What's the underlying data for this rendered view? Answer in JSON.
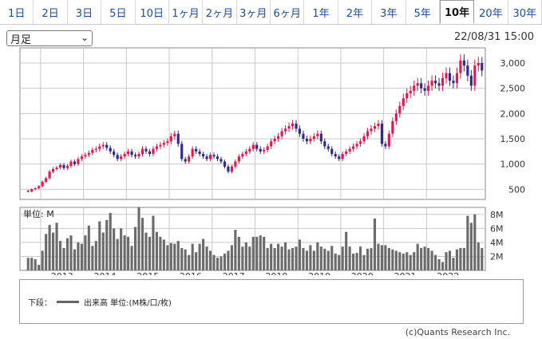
{
  "tabs": [
    {
      "label": "1日"
    },
    {
      "label": "2日"
    },
    {
      "label": "3日"
    },
    {
      "label": "5日"
    },
    {
      "label": "10日"
    },
    {
      "label": "1ヶ月"
    },
    {
      "label": "2ヶ月"
    },
    {
      "label": "3ヶ月"
    },
    {
      "label": "6ヶ月"
    },
    {
      "label": "1年"
    },
    {
      "label": "2年"
    },
    {
      "label": "3年"
    },
    {
      "label": "5年"
    },
    {
      "label": "10年"
    },
    {
      "label": "20年"
    },
    {
      "label": "30年"
    }
  ],
  "active_tab": 13,
  "period_select": {
    "value": "月足"
  },
  "timestamp": "22/08/31 15:00",
  "legend": {
    "prefix": "下段：",
    "label": "出来高 単位:(M株/口/枚)"
  },
  "copyright": "(c)Quants Research Inc.",
  "colors": {
    "up": "#e8144c",
    "down": "#2d2a8c",
    "volume": "#6b6b6b",
    "grid": "#c8c8c8"
  },
  "chart_data": [
    {
      "type": "candlestick",
      "ylim": [
        300,
        3300
      ],
      "yticks": [
        500,
        1000,
        1500,
        2000,
        2500,
        3000
      ],
      "yticklabels": [
        "500",
        "1,000",
        "1,500",
        "2,000",
        "2,500",
        "3,000"
      ],
      "xtick_labels": [
        "2013",
        "2014",
        "2015",
        "2016",
        "2017",
        "2018",
        "2019",
        "2020",
        "2021",
        "2022"
      ],
      "x_start": "2012-09",
      "series": [
        {
          "close": [
            455,
            500,
            520,
            560,
            650,
            720,
            850,
            900,
            930,
            980,
            920,
            960,
            1050,
            1000,
            1100,
            1150,
            1180,
            1220,
            1280,
            1300,
            1350,
            1380,
            1320,
            1250,
            1180,
            1100,
            1150,
            1200,
            1250,
            1180,
            1150,
            1200,
            1300,
            1250,
            1200,
            1300,
            1350,
            1380,
            1420,
            1450,
            1550,
            1600,
            1400,
            1100,
            1050,
            1150,
            1300,
            1250,
            1200,
            1150,
            1100,
            1180,
            1150,
            1100,
            1050,
            950,
            850,
            950,
            1050,
            1150,
            1200,
            1250,
            1300,
            1380,
            1300,
            1250,
            1280,
            1350,
            1450,
            1500,
            1550,
            1650,
            1700,
            1750,
            1800,
            1700,
            1600,
            1500,
            1450,
            1500,
            1550,
            1600,
            1450,
            1350,
            1300,
            1200,
            1150,
            1100,
            1200,
            1250,
            1300,
            1350,
            1400,
            1450,
            1550,
            1650,
            1700,
            1750,
            1800,
            1400,
            1350,
            1600,
            1850,
            2000,
            2150,
            2300,
            2400,
            2450,
            2550,
            2600,
            2500,
            2450,
            2550,
            2650,
            2600,
            2550,
            2700,
            2800,
            2650,
            2600,
            2800,
            3050,
            2950,
            2750,
            2550,
            2950,
            3000,
            2850
          ],
          "open": [
            470,
            455,
            500,
            520,
            560,
            650,
            720,
            850,
            900,
            930,
            980,
            920,
            960,
            1050,
            1000,
            1100,
            1150,
            1180,
            1220,
            1280,
            1300,
            1350,
            1380,
            1320,
            1250,
            1180,
            1100,
            1150,
            1200,
            1250,
            1180,
            1150,
            1200,
            1300,
            1250,
            1200,
            1300,
            1350,
            1380,
            1420,
            1450,
            1550,
            1600,
            1400,
            1100,
            1050,
            1150,
            1300,
            1250,
            1200,
            1150,
            1100,
            1180,
            1150,
            1100,
            1050,
            950,
            850,
            950,
            1050,
            1150,
            1200,
            1250,
            1300,
            1380,
            1300,
            1250,
            1280,
            1350,
            1450,
            1500,
            1550,
            1650,
            1700,
            1750,
            1800,
            1700,
            1600,
            1500,
            1450,
            1500,
            1550,
            1600,
            1450,
            1350,
            1300,
            1200,
            1150,
            1100,
            1200,
            1250,
            1300,
            1350,
            1400,
            1450,
            1550,
            1650,
            1700,
            1750,
            1800,
            1400,
            1350,
            1600,
            1850,
            2000,
            2150,
            2300,
            2400,
            2450,
            2550,
            2600,
            2500,
            2450,
            2550,
            2650,
            2600,
            2550,
            2700,
            2800,
            2650,
            2600,
            2800,
            3050,
            2950,
            2750,
            2550,
            2950,
            3000
          ],
          "volume": [
            1.8,
            1.8,
            1.6,
            0.8,
            2.8,
            5.2,
            6.5,
            5.4,
            6.8,
            4.2,
            3.2,
            4.6,
            5.0,
            3.0,
            4.0,
            3.8,
            5.0,
            6.4,
            3.5,
            4.2,
            7.0,
            5.4,
            7.2,
            8.2,
            6.0,
            4.5,
            6.0,
            5.0,
            4.8,
            3.5,
            6.2,
            9.0,
            7.5,
            5.4,
            4.8,
            7.8,
            5.5,
            4.8,
            4.4,
            3.6,
            3.9,
            3.8,
            4.2,
            3.2,
            3.0,
            2.2,
            3.8,
            2.6,
            3.8,
            4.5,
            3.4,
            2.8,
            2.2,
            1.8,
            2.0,
            2.4,
            2.8,
            3.6,
            5.8,
            4.8,
            3.4,
            4.0,
            3.4,
            4.8,
            4.8,
            5.0,
            4.8,
            3.2,
            3.8,
            3.2,
            3.8,
            3.4,
            4.0,
            3.0,
            3.2,
            3.4,
            4.4,
            3.2,
            2.8,
            3.6,
            2.8,
            4.0,
            3.4,
            3.1,
            2.8,
            3.5,
            2.4,
            2.2,
            3.4,
            5.5,
            3.4,
            2.4,
            2.5,
            3.4,
            2.2,
            3.1,
            3.2,
            7.4,
            3.8,
            3.6,
            3.6,
            3.2,
            3.0,
            2.8,
            2.6,
            2.4,
            2.6,
            2.2,
            2.6,
            3.8,
            3.2,
            3.4,
            3.2,
            2.8,
            2.2,
            1.6,
            1.2,
            2.6,
            2.8,
            1.8,
            3.0,
            3.2,
            3.2,
            7.8,
            6.8,
            8.0,
            4.0,
            3.2
          ]
        }
      ],
      "volume_ylim": [
        0,
        9
      ],
      "volume_yticks": [
        2,
        4,
        6,
        8
      ],
      "volume_yticklabels": [
        "2M",
        "4M",
        "6M",
        "8M"
      ],
      "volume_unit_label": "単位: M"
    }
  ]
}
